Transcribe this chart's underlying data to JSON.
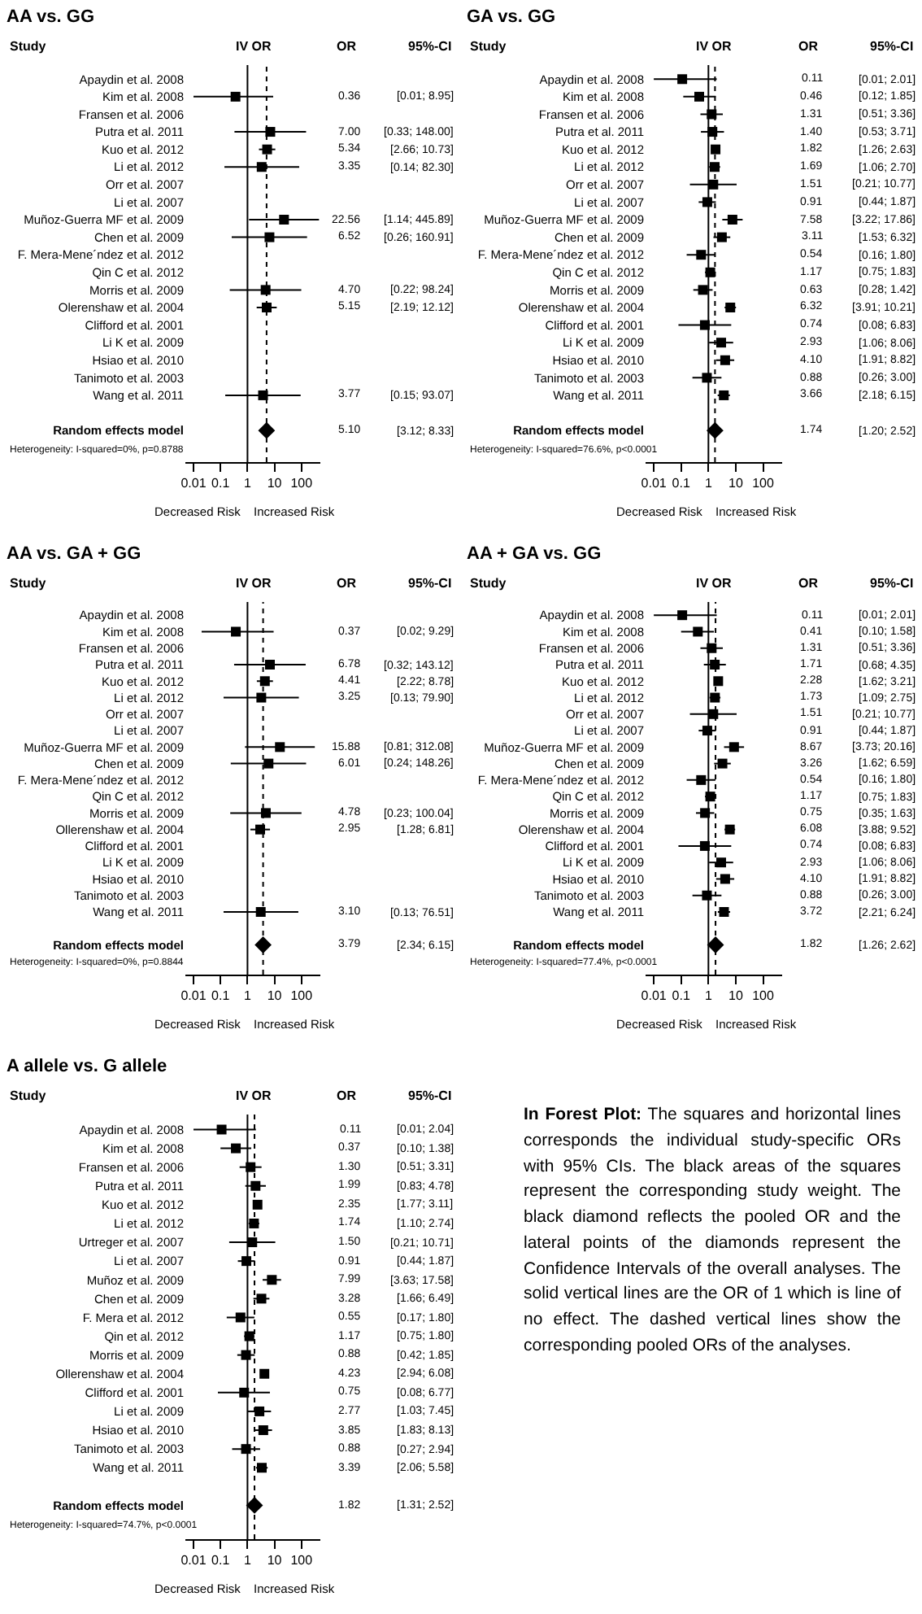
{
  "chart_data": [
    {
      "type": "scatter",
      "orientation": "horizontal",
      "title": "AA vs. GG",
      "log": "x",
      "xlim": [
        0.005,
        500
      ],
      "xticks": [
        0.01,
        0.1,
        1,
        10,
        100
      ],
      "categories": [
        "Apaydin et al. 2008",
        "Kim et al. 2008",
        "Fransen et al. 2006",
        "Putra et al. 2011",
        "Kuo et al. 2012",
        "Li et al. 2012",
        "Orr et al. 2007",
        "Li et al. 2007",
        "Muñoz-Guerra MF et al. 2009",
        "Chen et al. 2009",
        "F. Mera-Mene´ndez et al. 2012",
        "Qin C et al. 2012",
        "Morris et al. 2009",
        "Olerenshaw et al. 2004",
        "Clifford et al. 2001",
        "Li K et al. 2009",
        "Hsiao et al. 2010",
        "Tanimoto et al. 2003",
        "Wang et al. 2011",
        "Random effects model"
      ],
      "series": [
        {
          "color": "#000000",
          "marker": "square",
          "values": [
            null,
            0.36,
            null,
            7.0,
            5.34,
            3.35,
            null,
            null,
            22.56,
            6.52,
            null,
            null,
            4.7,
            5.15,
            null,
            null,
            null,
            null,
            3.77,
            null
          ],
          "errors": [
            null,
            [
              0.01,
              8.95
            ],
            null,
            [
              0.33,
              148.0
            ],
            [
              2.66,
              10.73
            ],
            [
              0.14,
              82.3
            ],
            null,
            null,
            [
              1.14,
              445.89
            ],
            [
              0.26,
              160.91
            ],
            null,
            null,
            [
              0.22,
              98.24
            ],
            [
              2.19,
              12.12
            ],
            null,
            null,
            null,
            null,
            [
              0.15,
              93.07
            ],
            null
          ],
          "value_labels": [
            null,
            "0.36 [0.01; 8.95]",
            null,
            "7.00 [0.33; 148.00]",
            "5.34 [2.66; 10.73]",
            "3.35 [0.14; 82.30]",
            null,
            null,
            "22.56 [1.14; 445.89]",
            "6.52 [0.26; 160.91]",
            null,
            null,
            "4.70 [0.22; 98.24]",
            "5.15 [2.19; 12.12]",
            null,
            null,
            null,
            null,
            "3.77 [0.15; 93.07]",
            null
          ]
        },
        {
          "color": "#000000",
          "marker": "diamond",
          "values": [
            null,
            null,
            null,
            null,
            null,
            null,
            null,
            null,
            null,
            null,
            null,
            null,
            null,
            null,
            null,
            null,
            null,
            null,
            null,
            5.1
          ],
          "errors": [
            null,
            null,
            null,
            null,
            null,
            null,
            null,
            null,
            null,
            null,
            null,
            null,
            null,
            null,
            null,
            null,
            null,
            null,
            null,
            [
              3.12,
              8.33
            ]
          ],
          "value_labels": [
            null,
            null,
            null,
            null,
            null,
            null,
            null,
            null,
            null,
            null,
            null,
            null,
            null,
            null,
            null,
            null,
            null,
            null,
            null,
            "5.10 [3.12; 8.33]"
          ]
        }
      ],
      "ref_lines": [
        {
          "axis": "x",
          "value": 1,
          "line_style": "solid",
          "color": "#000000"
        },
        {
          "axis": "x",
          "value": 5.1,
          "line_style": "dotted",
          "color": "#000000"
        }
      ],
      "annotations": [
        "Study",
        "IV OR",
        "OR",
        "95%-CI",
        "Heterogeneity: I-squared=0%, p=0.8788",
        "Decreased Risk",
        "Increased Risk"
      ]
    },
    {
      "type": "scatter",
      "orientation": "horizontal",
      "title": "GA vs. GG",
      "log": "x",
      "xlim": [
        0.005,
        500
      ],
      "xticks": [
        0.01,
        0.1,
        1,
        10,
        100
      ],
      "categories": [
        "Apaydin et al. 2008",
        "Kim et al. 2008",
        "Fransen et al. 2006",
        "Putra et al. 2011",
        "Kuo et al. 2012",
        "Li et al. 2012",
        "Orr et al. 2007",
        "Li et al. 2007",
        "Muñoz-Guerra MF et al. 2009",
        "Chen et al. 2009",
        "F. Mera-Mene´ndez et al. 2012",
        "Qin C et al. 2012",
        "Morris et al. 2009",
        "Olerenshaw et al. 2004",
        "Clifford et al. 2001",
        "Li K et al. 2009",
        "Hsiao et al. 2010",
        "Tanimoto et al. 2003",
        "Wang et al. 2011",
        "Random effects model"
      ],
      "series": [
        {
          "color": "#000000",
          "marker": "square",
          "values": [
            0.11,
            0.46,
            1.31,
            1.4,
            1.82,
            1.69,
            1.51,
            0.91,
            7.58,
            3.11,
            0.54,
            1.17,
            0.63,
            6.32,
            0.74,
            2.93,
            4.1,
            0.88,
            3.66,
            null
          ],
          "errors": [
            [
              0.01,
              2.01
            ],
            [
              0.12,
              1.85
            ],
            [
              0.51,
              3.36
            ],
            [
              0.53,
              3.71
            ],
            [
              1.26,
              2.63
            ],
            [
              1.06,
              2.7
            ],
            [
              0.21,
              10.77
            ],
            [
              0.44,
              1.87
            ],
            [
              3.22,
              17.86
            ],
            [
              1.53,
              6.32
            ],
            [
              0.16,
              1.8
            ],
            [
              0.75,
              1.83
            ],
            [
              0.28,
              1.42
            ],
            [
              3.91,
              10.21
            ],
            [
              0.08,
              6.83
            ],
            [
              1.06,
              8.06
            ],
            [
              1.91,
              8.82
            ],
            [
              0.26,
              3.0
            ],
            [
              2.18,
              6.15
            ],
            null
          ],
          "value_labels": [
            "0.11 [0.01; 2.01]",
            "0.46 [0.12; 1.85]",
            "1.31 [0.51; 3.36]",
            "1.40 [0.53; 3.71]",
            "1.82 [1.26; 2.63]",
            "1.69 [1.06; 2.70]",
            "1.51 [0.21; 10.77]",
            "0.91 [0.44; 1.87]",
            "7.58 [3.22; 17.86]",
            "3.11 [1.53; 6.32]",
            "0.54 [0.16; 1.80]",
            "1.17 [0.75; 1.83]",
            "0.63 [0.28; 1.42]",
            "6.32 [3.91; 10.21]",
            "0.74 [0.08; 6.83]",
            "2.93 [1.06; 8.06]",
            "4.10 [1.91; 8.82]",
            "0.88 [0.26; 3.00]",
            "3.66 [2.18; 6.15]",
            null
          ]
        },
        {
          "color": "#000000",
          "marker": "diamond",
          "values": [
            null,
            null,
            null,
            null,
            null,
            null,
            null,
            null,
            null,
            null,
            null,
            null,
            null,
            null,
            null,
            null,
            null,
            null,
            null,
            1.74
          ],
          "errors": [
            null,
            null,
            null,
            null,
            null,
            null,
            null,
            null,
            null,
            null,
            null,
            null,
            null,
            null,
            null,
            null,
            null,
            null,
            null,
            [
              1.2,
              2.52
            ]
          ],
          "value_labels": [
            null,
            null,
            null,
            null,
            null,
            null,
            null,
            null,
            null,
            null,
            null,
            null,
            null,
            null,
            null,
            null,
            null,
            null,
            null,
            "1.74 [1.20; 2.52]"
          ]
        }
      ],
      "ref_lines": [
        {
          "axis": "x",
          "value": 1,
          "line_style": "solid",
          "color": "#000000"
        },
        {
          "axis": "x",
          "value": 1.74,
          "line_style": "dotted",
          "color": "#000000"
        }
      ],
      "annotations": [
        "Study",
        "IV OR",
        "OR",
        "95%-CI",
        "Heterogeneity: I-squared=76.6%, p<0.0001",
        "Decreased Risk",
        "Increased Risk"
      ]
    },
    {
      "type": "scatter",
      "orientation": "horizontal",
      "title": "AA vs. GA + GG",
      "log": "x",
      "xlim": [
        0.005,
        500
      ],
      "xticks": [
        0.01,
        0.1,
        1,
        10,
        100
      ],
      "categories": [
        "Apaydin et al. 2008",
        "Kim et al. 2008",
        "Fransen et al. 2006",
        "Putra et al. 2011",
        "Kuo et al. 2012",
        "Li et al. 2012",
        "Orr et al. 2007",
        "Li et al. 2007",
        "Muñoz-Guerra MF et al. 2009",
        "Chen et al. 2009",
        "F. Mera-Mene´ndez et al. 2012",
        "Qin C et al. 2012",
        "Morris et al. 2009",
        "Ollerenshaw et al. 2004",
        "Clifford et al. 2001",
        "Li K et al. 2009",
        "Hsiao et al. 2010",
        "Tanimoto et al. 2003",
        "Wang et al. 2011",
        "Random effects model"
      ],
      "series": [
        {
          "color": "#000000",
          "marker": "square",
          "values": [
            null,
            0.37,
            null,
            6.78,
            4.41,
            3.25,
            null,
            null,
            15.88,
            6.01,
            null,
            null,
            4.78,
            2.95,
            null,
            null,
            null,
            null,
            3.1,
            null
          ],
          "errors": [
            null,
            [
              0.02,
              9.29
            ],
            null,
            [
              0.32,
              143.12
            ],
            [
              2.22,
              8.78
            ],
            [
              0.13,
              79.9
            ],
            null,
            null,
            [
              0.81,
              312.08
            ],
            [
              0.24,
              148.26
            ],
            null,
            null,
            [
              0.23,
              100.04
            ],
            [
              1.28,
              6.81
            ],
            null,
            null,
            null,
            null,
            [
              0.13,
              76.51
            ],
            null
          ],
          "value_labels": [
            null,
            "0.37 [0.02; 9.29]",
            null,
            "6.78 [0.32; 143.12]",
            "4.41 [2.22; 8.78]",
            "3.25 [0.13; 79.90]",
            null,
            null,
            "15.88 [0.81; 312.08]",
            "6.01 [0.24; 148.26]",
            null,
            null,
            "4.78 [0.23; 100.04]",
            "2.95 [1.28; 6.81]",
            null,
            null,
            null,
            null,
            "3.10 [0.13; 76.51]",
            null
          ]
        },
        {
          "color": "#000000",
          "marker": "diamond",
          "values": [
            null,
            null,
            null,
            null,
            null,
            null,
            null,
            null,
            null,
            null,
            null,
            null,
            null,
            null,
            null,
            null,
            null,
            null,
            null,
            3.79
          ],
          "errors": [
            null,
            null,
            null,
            null,
            null,
            null,
            null,
            null,
            null,
            null,
            null,
            null,
            null,
            null,
            null,
            null,
            null,
            null,
            null,
            [
              2.34,
              6.15
            ]
          ],
          "value_labels": [
            null,
            null,
            null,
            null,
            null,
            null,
            null,
            null,
            null,
            null,
            null,
            null,
            null,
            null,
            null,
            null,
            null,
            null,
            null,
            "3.79 [2.34; 6.15]"
          ]
        }
      ],
      "ref_lines": [
        {
          "axis": "x",
          "value": 1,
          "line_style": "solid",
          "color": "#000000"
        },
        {
          "axis": "x",
          "value": 3.79,
          "line_style": "dotted",
          "color": "#000000"
        }
      ],
      "annotations": [
        "Study",
        "IV OR",
        "OR",
        "95%-CI",
        "Heterogeneity: I-squared=0%, p=0.8844",
        "Decreased Risk",
        "Increased Risk"
      ]
    },
    {
      "type": "scatter",
      "orientation": "horizontal",
      "title": "AA + GA vs. GG",
      "log": "x",
      "xlim": [
        0.005,
        500
      ],
      "xticks": [
        0.01,
        0.1,
        1,
        10,
        100
      ],
      "categories": [
        "Apaydin et al. 2008",
        "Kim et al. 2008",
        "Fransen et al. 2006",
        "Putra et al. 2011",
        "Kuo et al. 2012",
        "Li et al. 2012",
        "Orr et al. 2007",
        "Li et al. 2007",
        "Muñoz-Guerra MF et al. 2009",
        "Chen et al. 2009",
        "F. Mera-Mene´ndez et al. 2012",
        "Qin C et al. 2012",
        "Morris et al. 2009",
        "Olerenshaw et al. 2004",
        "Clifford et al. 2001",
        "Li K et al. 2009",
        "Hsiao et al. 2010",
        "Tanimoto et al. 2003",
        "Wang et al. 2011",
        "Random effects model"
      ],
      "series": [
        {
          "color": "#000000",
          "marker": "square",
          "values": [
            0.11,
            0.41,
            1.31,
            1.71,
            2.28,
            1.73,
            1.51,
            0.91,
            8.67,
            3.26,
            0.54,
            1.17,
            0.75,
            6.08,
            0.74,
            2.93,
            4.1,
            0.88,
            3.72,
            null
          ],
          "errors": [
            [
              0.01,
              2.01
            ],
            [
              0.1,
              1.58
            ],
            [
              0.51,
              3.36
            ],
            [
              0.68,
              4.35
            ],
            [
              1.62,
              3.21
            ],
            [
              1.09,
              2.75
            ],
            [
              0.21,
              10.77
            ],
            [
              0.44,
              1.87
            ],
            [
              3.73,
              20.16
            ],
            [
              1.62,
              6.59
            ],
            [
              0.16,
              1.8
            ],
            [
              0.75,
              1.83
            ],
            [
              0.35,
              1.63
            ],
            [
              3.88,
              9.52
            ],
            [
              0.08,
              6.83
            ],
            [
              1.06,
              8.06
            ],
            [
              1.91,
              8.82
            ],
            [
              0.26,
              3.0
            ],
            [
              2.21,
              6.24
            ],
            null
          ],
          "value_labels": [
            "0.11 [0.01; 2.01]",
            "0.41 [0.10; 1.58]",
            "1.31 [0.51; 3.36]",
            "1.71 [0.68; 4.35]",
            "2.28 [1.62; 3.21]",
            "1.73 [1.09; 2.75]",
            "1.51 [0.21; 10.77]",
            "0.91 [0.44; 1.87]",
            "8.67 [3.73; 20.16]",
            "3.26 [1.62; 6.59]",
            "0.54 [0.16; 1.80]",
            "1.17 [0.75; 1.83]",
            "0.75 [0.35; 1.63]",
            "6.08 [3.88; 9.52]",
            "0.74 [0.08; 6.83]",
            "2.93 [1.06; 8.06]",
            "4.10 [1.91; 8.82]",
            "0.88 [0.26; 3.00]",
            "3.72 [2.21; 6.24]",
            null
          ]
        },
        {
          "color": "#000000",
          "marker": "diamond",
          "values": [
            null,
            null,
            null,
            null,
            null,
            null,
            null,
            null,
            null,
            null,
            null,
            null,
            null,
            null,
            null,
            null,
            null,
            null,
            null,
            1.82
          ],
          "errors": [
            null,
            null,
            null,
            null,
            null,
            null,
            null,
            null,
            null,
            null,
            null,
            null,
            null,
            null,
            null,
            null,
            null,
            null,
            null,
            [
              1.26,
              2.62
            ]
          ],
          "value_labels": [
            null,
            null,
            null,
            null,
            null,
            null,
            null,
            null,
            null,
            null,
            null,
            null,
            null,
            null,
            null,
            null,
            null,
            null,
            null,
            "1.82 [1.26; 2.62]"
          ]
        }
      ],
      "ref_lines": [
        {
          "axis": "x",
          "value": 1,
          "line_style": "solid",
          "color": "#000000"
        },
        {
          "axis": "x",
          "value": 1.82,
          "line_style": "dotted",
          "color": "#000000"
        }
      ],
      "annotations": [
        "Study",
        "IV OR",
        "OR",
        "95%-CI",
        "Heterogeneity: I-squared=77.4%, p<0.0001",
        "Decreased Risk",
        "Increased Risk"
      ]
    },
    {
      "type": "scatter",
      "orientation": "horizontal",
      "title": "A allele vs. G allele",
      "log": "x",
      "xlim": [
        0.005,
        500
      ],
      "xticks": [
        0.01,
        0.1,
        1,
        10,
        100
      ],
      "categories": [
        "Apaydin et al. 2008",
        "Kim et al. 2008",
        "Fransen et al. 2006",
        "Putra et al. 2011",
        "Kuo et al. 2012",
        "Li et al. 2012",
        "Urtreger et al. 2007",
        "Li et al. 2007",
        "Muñoz et al. 2009",
        "Chen et al. 2009",
        "F. Mera et al. 2012",
        "Qin et al. 2012",
        "Morris et al. 2009",
        "Ollerenshaw et al. 2004",
        "Clifford et al. 2001",
        "Li et al. 2009",
        "Hsiao et al. 2010",
        "Tanimoto et al. 2003",
        "Wang et al. 2011",
        "Random effects model"
      ],
      "series": [
        {
          "color": "#000000",
          "marker": "square",
          "values": [
            0.11,
            0.37,
            1.3,
            1.99,
            2.35,
            1.74,
            1.5,
            0.91,
            7.99,
            3.28,
            0.55,
            1.17,
            0.88,
            4.23,
            0.75,
            2.77,
            3.85,
            0.88,
            3.39,
            null
          ],
          "errors": [
            [
              0.01,
              2.04
            ],
            [
              0.1,
              1.38
            ],
            [
              0.51,
              3.31
            ],
            [
              0.83,
              4.78
            ],
            [
              1.77,
              3.11
            ],
            [
              1.1,
              2.74
            ],
            [
              0.21,
              10.71
            ],
            [
              0.44,
              1.87
            ],
            [
              3.63,
              17.58
            ],
            [
              1.66,
              6.49
            ],
            [
              0.17,
              1.8
            ],
            [
              0.75,
              1.8
            ],
            [
              0.42,
              1.85
            ],
            [
              2.94,
              6.08
            ],
            [
              0.08,
              6.77
            ],
            [
              1.03,
              7.45
            ],
            [
              1.83,
              8.13
            ],
            [
              0.27,
              2.94
            ],
            [
              2.06,
              5.58
            ],
            null
          ],
          "value_labels": [
            "0.11 [0.01; 2.04]",
            "0.37 [0.10; 1.38]",
            "1.30 [0.51; 3.31]",
            "1.99 [0.83; 4.78]",
            "2.35 [1.77; 3.11]",
            "1.74 [1.10; 2.74]",
            "1.50 [0.21; 10.71]",
            "0.91 [0.44; 1.87]",
            "7.99 [3.63; 17.58]",
            "3.28 [1.66; 6.49]",
            "0.55 [0.17; 1.80]",
            "1.17 [0.75; 1.80]",
            "0.88 [0.42; 1.85]",
            "4.23 [2.94; 6.08]",
            "0.75 [0.08; 6.77]",
            "2.77 [1.03; 7.45]",
            "3.85 [1.83; 8.13]",
            "0.88 [0.27; 2.94]",
            "3.39 [2.06; 5.58]",
            null
          ]
        },
        {
          "color": "#000000",
          "marker": "diamond",
          "values": [
            null,
            null,
            null,
            null,
            null,
            null,
            null,
            null,
            null,
            null,
            null,
            null,
            null,
            null,
            null,
            null,
            null,
            null,
            null,
            1.82
          ],
          "errors": [
            null,
            null,
            null,
            null,
            null,
            null,
            null,
            null,
            null,
            null,
            null,
            null,
            null,
            null,
            null,
            null,
            null,
            null,
            null,
            [
              1.31,
              2.52
            ]
          ],
          "value_labels": [
            null,
            null,
            null,
            null,
            null,
            null,
            null,
            null,
            null,
            null,
            null,
            null,
            null,
            null,
            null,
            null,
            null,
            null,
            null,
            "1.82 [1.31; 2.52]"
          ]
        }
      ],
      "ref_lines": [
        {
          "axis": "x",
          "value": 1,
          "line_style": "solid",
          "color": "#000000"
        },
        {
          "axis": "x",
          "value": 1.82,
          "line_style": "dotted",
          "color": "#000000"
        }
      ],
      "annotations": [
        "Study",
        "IV OR",
        "OR",
        "95%-CI",
        "Heterogeneity: I-squared=74.7%, p<0.0001",
        "Decreased Risk",
        "Increased Risk"
      ]
    },
    {
      "type": "other",
      "title": "In Forest Plot:",
      "annotations": [
        "The squares and horizontal lines corresponds the individual study-specific ORs with 95% CIs. The black areas of the squares represent the corresponding study weight. The black diamond reflects the pooled OR and the lateral points of the diamonds represent the Confidence Intervals of the overall analyses. The solid vertical lines are the OR of 1 which is line of no effect. The dashed vertical lines show the corresponding pooled ORs of the analyses."
      ]
    }
  ]
}
